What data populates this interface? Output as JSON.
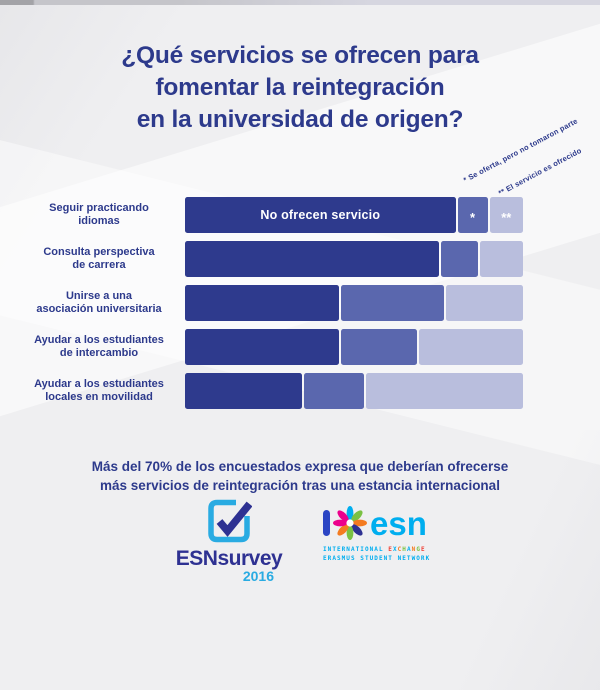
{
  "title": {
    "text": "¿Qué servicios se ofrecen para\nfomentar la reintegración\nen la universidad de origen?",
    "color": "#2d3a8c"
  },
  "annotations": {
    "note1": "* Se oferta, pero no tomaron parte",
    "note2": "** El servicio es ofrecido"
  },
  "chart_data": {
    "type": "bar",
    "orientation": "horizontal",
    "stacked": true,
    "units": "percent (estimated from segment lengths)",
    "xlim": [
      0,
      100
    ],
    "grid": false,
    "legend_position": "rotated-notes-top-right",
    "categories": [
      "Seguir practicando idiomas",
      "Consulta perspectiva de carrera",
      "Unirse a una asociación universitaria",
      "Ayudar a los estudiantes de intercambio",
      "Ayudar a los estudiantes locales en movilidad"
    ],
    "categories_wrapped": [
      [
        "Seguir practicando",
        "idiomas"
      ],
      [
        "Consulta perspectiva",
        "de carrera"
      ],
      [
        "Unirse a una",
        "asociación universitaria"
      ],
      [
        "Ayudar a los estudiantes",
        "de intercambio"
      ],
      [
        "Ayudar a los estudiantes",
        "locales en movilidad"
      ]
    ],
    "series": [
      {
        "name": "No ofrecen servicio",
        "color": "#2e3a8d",
        "values": [
          81,
          76,
          46,
          46,
          35
        ]
      },
      {
        "name": "* Se oferta, pero no tomaron parte",
        "color": "#5a67ae",
        "values": [
          9,
          11,
          31,
          23,
          18
        ]
      },
      {
        "name": "** El servicio es ofrecido",
        "color": "#b9bedd",
        "values": [
          10,
          13,
          23,
          31,
          47
        ]
      }
    ],
    "bar_labels": {
      "first_bar_segment_label": "No ofrecen servicio",
      "first_bar_markers": [
        "*",
        "**"
      ]
    }
  },
  "summary": {
    "text": "Más del 70% de los encuestados expresa que deberían ofrecerse\nmás servicios de reintegración tras una estancia internacional"
  },
  "logos": {
    "esnsurvey": {
      "wordmark": "ESNsurvey",
      "year": "2016",
      "wordmark_color": "#2e3192",
      "accent_color": "#29abe2"
    },
    "esn": {
      "word": "esn",
      "word_color": "#00aeef",
      "ibar_color": "#2b45c4",
      "star_colors": [
        "#00aeef",
        "#7ac143",
        "#f47b20",
        "#2e3192",
        "#7ac143",
        "#f47b20",
        "#ec008c",
        "#ec008c"
      ],
      "sub_line1_prefix": "INTERNATIONAL ",
      "exchange_letters": [
        {
          "ch": "E",
          "color": "#ef4135"
        },
        {
          "ch": "X",
          "color": "#00aeef"
        },
        {
          "ch": "C",
          "color": "#f47b20"
        },
        {
          "ch": "H",
          "color": "#7ac143"
        },
        {
          "ch": "A",
          "color": "#00aeef"
        },
        {
          "ch": "N",
          "color": "#f47b20"
        },
        {
          "ch": "G",
          "color": "#7ac143"
        },
        {
          "ch": "E",
          "color": "#ef4135"
        }
      ],
      "sub_line2": "ERASMUS STUDENT NETWORK"
    }
  }
}
